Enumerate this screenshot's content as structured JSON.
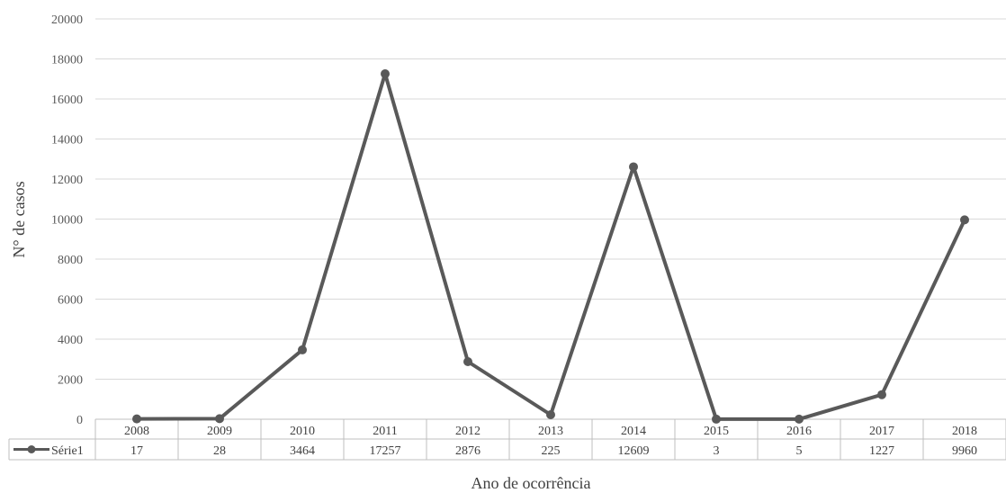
{
  "chart_data": {
    "type": "line",
    "categories": [
      "2008",
      "2009",
      "2010",
      "2011",
      "2012",
      "2013",
      "2014",
      "2015",
      "2016",
      "2017",
      "2018"
    ],
    "series": [
      {
        "name": "Série1",
        "values": [
          17,
          28,
          3464,
          17257,
          2876,
          225,
          12609,
          3,
          5,
          1227,
          9960
        ]
      }
    ],
    "xlabel": "Ano de ocorrência",
    "ylabel": "N° de casos",
    "ylim": [
      0,
      20000
    ],
    "yticks": [
      "0",
      "2000",
      "4000",
      "6000",
      "8000",
      "10000",
      "12000",
      "14000",
      "16000",
      "18000",
      "20000"
    ],
    "grid": true,
    "data_table": true,
    "colors": {
      "line": "#595959",
      "grid": "#d9d9d9",
      "table": "#bfbfbf"
    }
  }
}
